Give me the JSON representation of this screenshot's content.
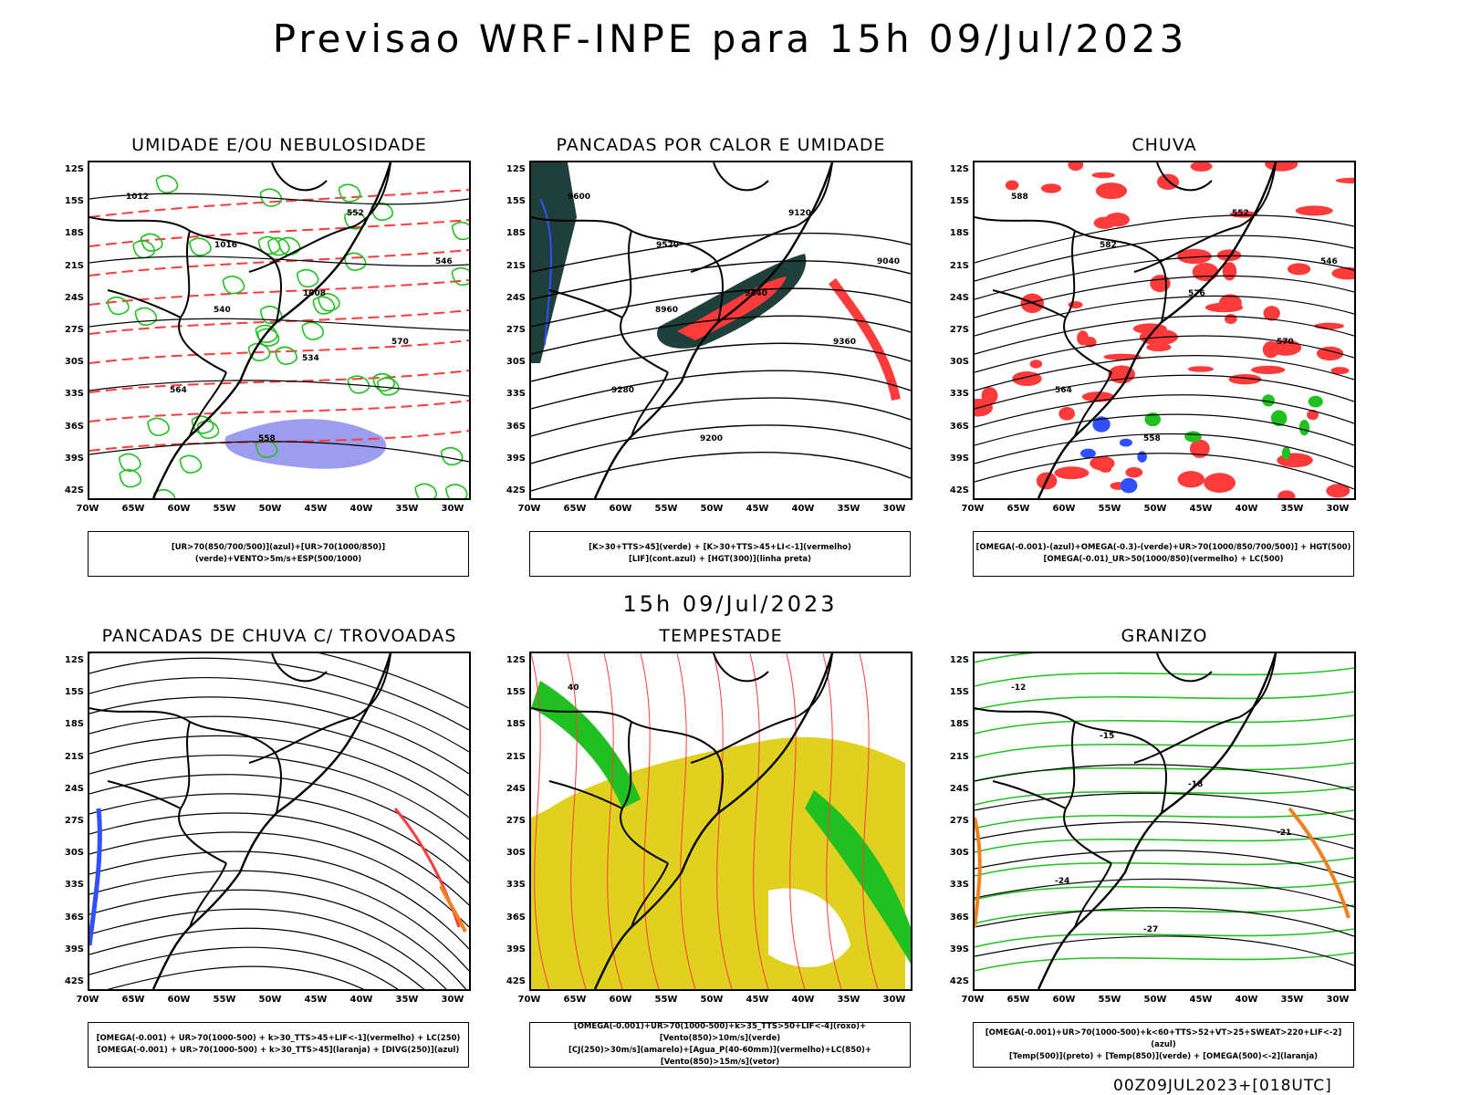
{
  "title": "Previsao WRF-INPE  para 15h 09/Jul/2023",
  "mid_title": "15h 09/Jul/2023",
  "footer": "00Z09JUL2023+[018UTC]",
  "lat_labels": [
    "12S",
    "15S",
    "18S",
    "21S",
    "24S",
    "27S",
    "30S",
    "33S",
    "36S",
    "39S",
    "42S"
  ],
  "lon_labels": [
    "70W",
    "65W",
    "60W",
    "55W",
    "50W",
    "45W",
    "40W",
    "35W",
    "30W"
  ],
  "panels": [
    {
      "title": "UMIDADE E/OU NEBULOSIDADE",
      "legend": [
        "[UR>70(850/700/500)](azul)+[UR>70(1000/850)](verde)+VENTO>5m/s+ESP(500/1000)"
      ],
      "contour_labels": [
        "1012",
        "1016",
        "1008",
        "570",
        "564",
        "558",
        "552",
        "546",
        "540",
        "534"
      ]
    },
    {
      "title": "PANCADAS POR CALOR E UMIDADE",
      "legend": [
        "[K>30+TTS>45](verde) + [K>30+TTS>45+LI<-1](vermelho)",
        "[LIF](cont.azul) + [HGT(300)](linha preta)"
      ],
      "contour_labels": [
        "9600",
        "9520",
        "9440",
        "9360",
        "9280",
        "9200",
        "9120",
        "9040",
        "8960"
      ]
    },
    {
      "title": "CHUVA",
      "legend": [
        "[OMEGA(-0.001)-(azul)+OMEGA(-0.3)-(verde)+UR>70(1000/850/700/500)] + HGT(500)",
        "[OMEGA(-0.01)_UR>50(1000/850)(vermelho) + LC(500)"
      ],
      "contour_labels": [
        "588",
        "582",
        "576",
        "570",
        "564",
        "558",
        "552",
        "546"
      ]
    },
    {
      "title": "PANCADAS DE CHUVA C/ TROVOADAS",
      "legend": [
        "[OMEGA(-0.001) + UR>70(1000-500) + k>30_TTS>45+LIF<-1](vermelho) + LC(250)",
        "[OMEGA(-0.001) + UR>70(1000-500) + k>30_TTS>45](laranja) + [DIVG(250)](azul)"
      ],
      "contour_labels": []
    },
    {
      "title": "TEMPESTADE",
      "legend": [
        "[OMEGA(-0.001)+UR>70(1000-500)+k>35_TTS>50+LIF<-4](roxo)+[Vento(850)>10m/s](verde)",
        "[CJ(250)>30m/s](amarelo)+[Agua_P(40-60mm)](vermelho)+LC(850)+[Vento(850)>15m/s](vetor)"
      ],
      "contour_labels": [
        "40"
      ]
    },
    {
      "title": "GRANIZO",
      "legend": [
        "[OMEGA(-0.001)+UR>70(1000-500)+k<60+TTS>52+VT>25+SWEAT>220+LIF<-2](azul)",
        "[Temp(500)](preto) + [Temp(850)](verde) + [OMEGA(500)<-2](laranja)"
      ],
      "contour_labels": [
        "-12",
        "-15",
        "-18",
        "-21",
        "-24",
        "-27"
      ]
    }
  ],
  "colors": {
    "red": "#ff3a3a",
    "green": "#20c020",
    "blue": "#3050ff",
    "lightblue": "#9c9cf0",
    "yellow": "#e0d020",
    "orange": "#f08020",
    "darkteal": "#1f3f3a"
  }
}
